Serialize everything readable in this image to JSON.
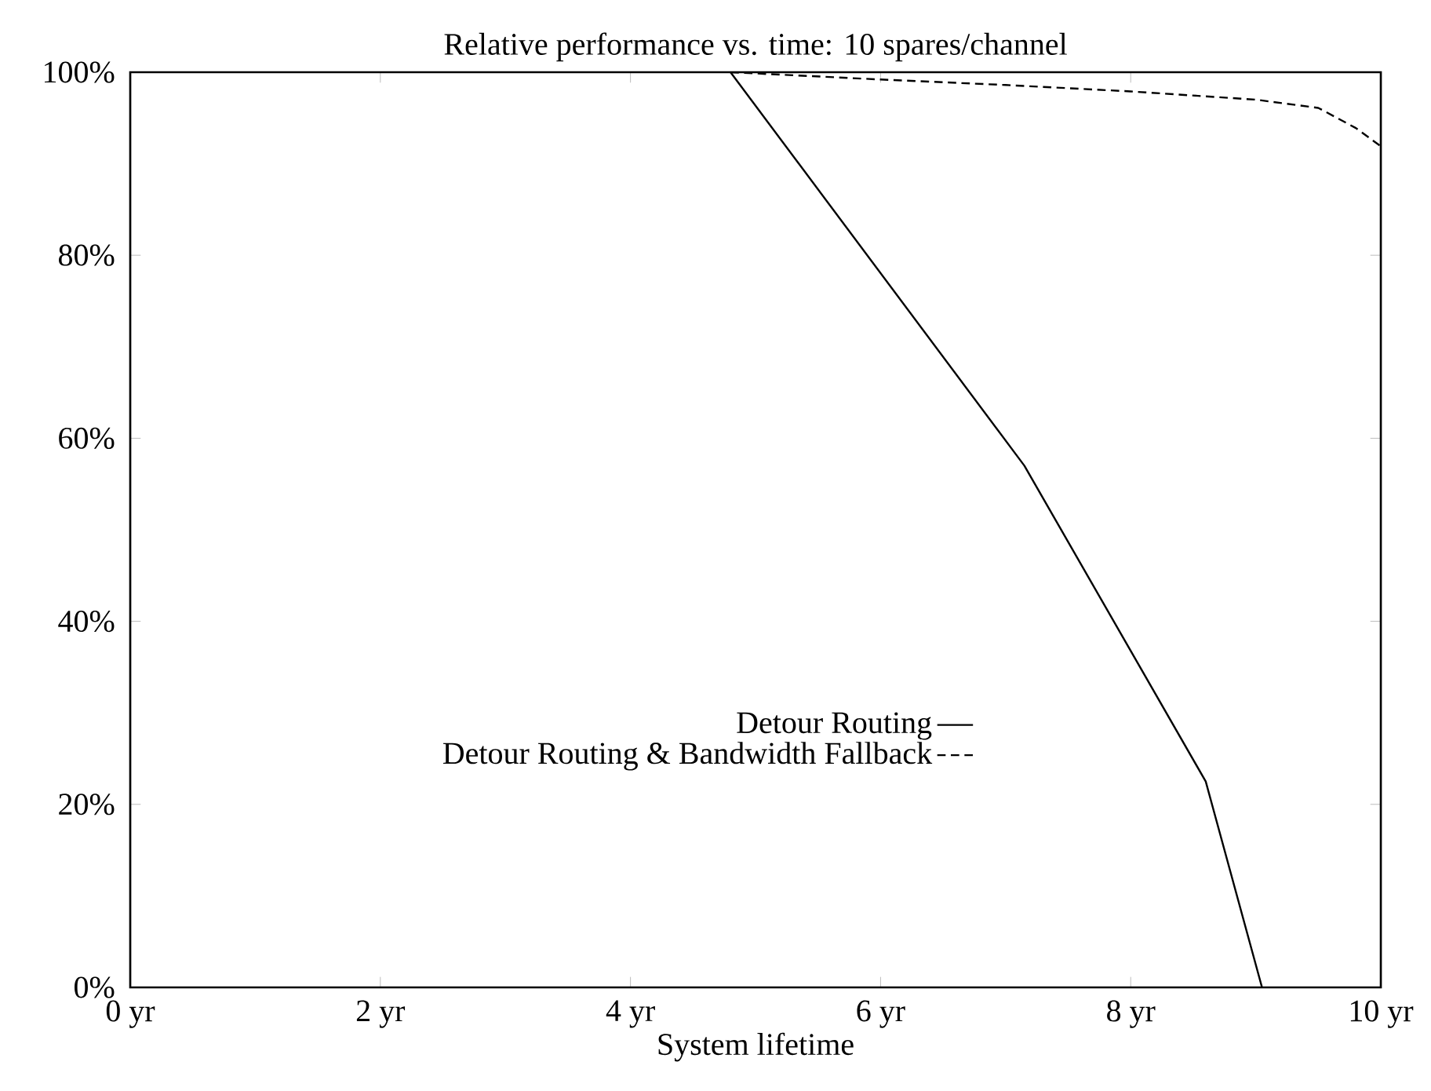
{
  "chart_data": {
    "type": "line",
    "title": "Relative performance vs. time: 10 spares/channel",
    "xlabel": "System lifetime",
    "xlim": [
      0,
      10
    ],
    "ylim": [
      0,
      100
    ],
    "xticks": [
      {
        "value": 0,
        "label": "0 yr"
      },
      {
        "value": 2,
        "label": "2 yr"
      },
      {
        "value": 4,
        "label": "4 yr"
      },
      {
        "value": 6,
        "label": "6 yr"
      },
      {
        "value": 8,
        "label": "8 yr"
      },
      {
        "value": 10,
        "label": "10 yr"
      }
    ],
    "yticks": [
      {
        "value": 0,
        "label": "0%"
      },
      {
        "value": 20,
        "label": "20%"
      },
      {
        "value": 40,
        "label": "40%"
      },
      {
        "value": 60,
        "label": "60%"
      },
      {
        "value": 80,
        "label": "80%"
      },
      {
        "value": 100,
        "label": "100%"
      }
    ],
    "legend": "bottom",
    "grid": false,
    "marker": "none",
    "series": [
      {
        "name": "Detour Routing",
        "color": "#000000",
        "line_style": "solid",
        "x": [
          4.8,
          7.15,
          8.6,
          9.05
        ],
        "values": [
          100,
          57,
          22.5,
          0
        ]
      },
      {
        "name": "Detour Routing & Bandwidth Fallback",
        "color": "#000000",
        "line_style": "dashed",
        "x": [
          4.8,
          6,
          7,
          8,
          9,
          9.5,
          9.8,
          10
        ],
        "values": [
          100,
          99.2,
          98.6,
          97.9,
          97.0,
          96.1,
          93.9,
          91.9
        ]
      }
    ]
  }
}
